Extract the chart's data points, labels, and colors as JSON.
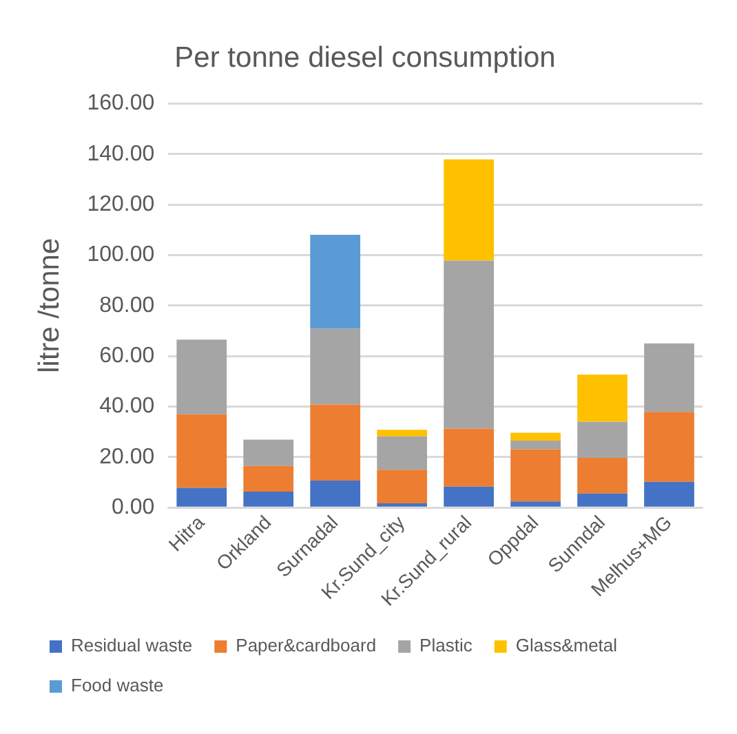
{
  "chart_data": {
    "type": "bar",
    "title": "Per tonne diesel consumption",
    "ylabel": "litre /tonne",
    "stacked": true,
    "grid": "y",
    "legend": "bottom",
    "categories": [
      "Hitra",
      "Orkland",
      "Surnadal",
      "Kr.Sund_city",
      "Kr.Sund_rural",
      "Oppdal",
      "Sunndal",
      "Melhus+MG"
    ],
    "ylim": [
      0,
      160
    ],
    "yticks": [
      {
        "value": 0,
        "label": "0.00"
      },
      {
        "value": 20,
        "label": "20.00"
      },
      {
        "value": 40,
        "label": "40.00"
      },
      {
        "value": 60,
        "label": "60.00"
      },
      {
        "value": 80,
        "label": "80.00"
      },
      {
        "value": 100,
        "label": "100.00"
      },
      {
        "value": 120,
        "label": "120.00"
      },
      {
        "value": 140,
        "label": "140.00"
      },
      {
        "value": 160,
        "label": "160.00"
      }
    ],
    "series": [
      {
        "name": "Residual waste",
        "color": "#4472c4",
        "values": [
          7.8,
          6.3,
          10.7,
          1.7,
          8.3,
          2.4,
          5.6,
          10.2
        ]
      },
      {
        "name": "Paper&cardboard",
        "color": "#ed7d31",
        "values": [
          29.1,
          10.2,
          30.1,
          13.3,
          23.0,
          20.7,
          14.1,
          27.7
        ]
      },
      {
        "name": "Plastic",
        "color": "#a5a5a5",
        "values": [
          29.6,
          10.4,
          30.1,
          13.2,
          66.5,
          3.4,
          14.3,
          27.1
        ]
      },
      {
        "name": "Glass&metal",
        "color": "#ffc000",
        "values": [
          null,
          null,
          null,
          2.6,
          40.1,
          3.1,
          18.7,
          null
        ]
      },
      {
        "name": "Food waste",
        "color": "#5b9bd5",
        "values": [
          null,
          null,
          37.1,
          null,
          null,
          null,
          null,
          null
        ]
      }
    ]
  }
}
